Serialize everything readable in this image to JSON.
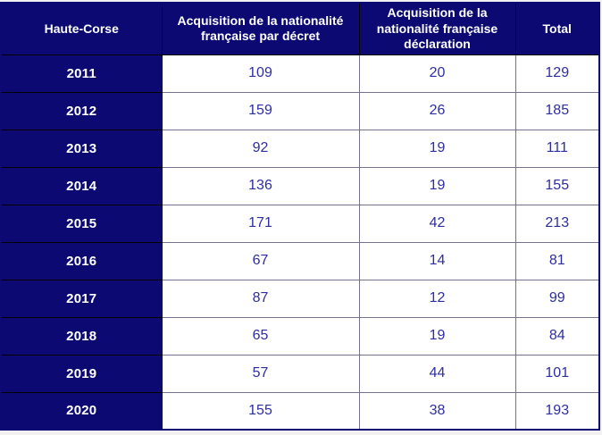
{
  "colors": {
    "header_background": "#0c0a72",
    "header_text": "#ffffff",
    "cell_background": "#ffffff",
    "cell_text": "#2d2da2",
    "grid_border": "#75738f",
    "header_border": "#000000"
  },
  "chart_data": {
    "type": "table",
    "title": "Haute-Corse",
    "corner_header": "Haute-Corse",
    "column_headers": [
      "Acquisition de la nationalité française par décret",
      "Acquisition de la nationalité française déclaration",
      "Total"
    ],
    "rows": [
      [
        "2011",
        "109",
        "20",
        "129"
      ],
      [
        "2012",
        "159",
        "26",
        "185"
      ],
      [
        "2013",
        "92",
        "19",
        "111"
      ],
      [
        "2014",
        "136",
        "19",
        "155"
      ],
      [
        "2015",
        "171",
        "42",
        "213"
      ],
      [
        "2016",
        "67",
        "14",
        "81"
      ],
      [
        "2017",
        "87",
        "12",
        "99"
      ],
      [
        "2018",
        "65",
        "19",
        "84"
      ],
      [
        "2019",
        "57",
        "44",
        "101"
      ],
      [
        "2020",
        "155",
        "38",
        "193"
      ]
    ]
  }
}
